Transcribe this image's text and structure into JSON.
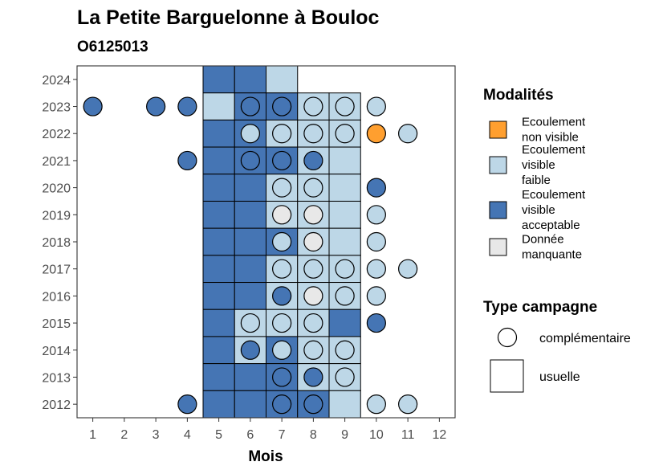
{
  "chart_data": {
    "type": "heatmap",
    "title": "La Petite Barguelonne à Bouloc",
    "subtitle": "O6125013",
    "xlabel": "Mois",
    "ylabel": "",
    "x_ticks": [
      "1",
      "2",
      "3",
      "4",
      "5",
      "6",
      "7",
      "8",
      "9",
      "10",
      "11",
      "12"
    ],
    "y_ticks": [
      "2012",
      "2013",
      "2014",
      "2015",
      "2016",
      "2017",
      "2018",
      "2019",
      "2020",
      "2021",
      "2022",
      "2023",
      "2024"
    ],
    "xlim": [
      0.5,
      12.5
    ],
    "ylim": [
      2011.5,
      2024.5
    ],
    "grid": false,
    "legend_position": "right",
    "modalites_legend": {
      "title": "Modalités",
      "items": [
        {
          "key": "nv",
          "lines": [
            "Ecoulement",
            "non visible"
          ],
          "color": "#FF9F2F"
        },
        {
          "key": "vf",
          "lines": [
            "Ecoulement",
            "visible",
            "faible"
          ],
          "color": "#BDD7E7"
        },
        {
          "key": "va",
          "lines": [
            "Ecoulement",
            "visible",
            "acceptable"
          ],
          "color": "#4575B4"
        },
        {
          "key": "dm",
          "lines": [
            "Donnée",
            "manquante"
          ],
          "color": "#E8E8E8"
        }
      ]
    },
    "campagne_legend": {
      "title": "Type campagne",
      "items": [
        {
          "key": "complementaire",
          "label": "complémentaire",
          "shape": "circle"
        },
        {
          "key": "usuelle",
          "label": "usuelle",
          "shape": "square"
        }
      ]
    },
    "tiles_usuelle": [
      {
        "year": 2024,
        "month": 5,
        "m": "va"
      },
      {
        "year": 2024,
        "month": 6,
        "m": "va"
      },
      {
        "year": 2024,
        "month": 7,
        "m": "vf"
      },
      {
        "year": 2023,
        "month": 5,
        "m": "vf"
      },
      {
        "year": 2023,
        "month": 6,
        "m": "va"
      },
      {
        "year": 2023,
        "month": 7,
        "m": "va"
      },
      {
        "year": 2023,
        "month": 8,
        "m": "vf"
      },
      {
        "year": 2023,
        "month": 9,
        "m": "vf"
      },
      {
        "year": 2022,
        "month": 5,
        "m": "va"
      },
      {
        "year": 2022,
        "month": 6,
        "m": "va"
      },
      {
        "year": 2022,
        "month": 7,
        "m": "vf"
      },
      {
        "year": 2022,
        "month": 8,
        "m": "vf"
      },
      {
        "year": 2022,
        "month": 9,
        "m": "vf"
      },
      {
        "year": 2021,
        "month": 5,
        "m": "va"
      },
      {
        "year": 2021,
        "month": 6,
        "m": "va"
      },
      {
        "year": 2021,
        "month": 7,
        "m": "va"
      },
      {
        "year": 2021,
        "month": 8,
        "m": "vf"
      },
      {
        "year": 2021,
        "month": 9,
        "m": "vf"
      },
      {
        "year": 2020,
        "month": 5,
        "m": "va"
      },
      {
        "year": 2020,
        "month": 6,
        "m": "va"
      },
      {
        "year": 2020,
        "month": 7,
        "m": "vf"
      },
      {
        "year": 2020,
        "month": 8,
        "m": "vf"
      },
      {
        "year": 2020,
        "month": 9,
        "m": "vf"
      },
      {
        "year": 2019,
        "month": 5,
        "m": "va"
      },
      {
        "year": 2019,
        "month": 6,
        "m": "va"
      },
      {
        "year": 2019,
        "month": 7,
        "m": "vf"
      },
      {
        "year": 2019,
        "month": 8,
        "m": "vf"
      },
      {
        "year": 2019,
        "month": 9,
        "m": "vf"
      },
      {
        "year": 2018,
        "month": 5,
        "m": "va"
      },
      {
        "year": 2018,
        "month": 6,
        "m": "va"
      },
      {
        "year": 2018,
        "month": 7,
        "m": "va"
      },
      {
        "year": 2018,
        "month": 8,
        "m": "vf"
      },
      {
        "year": 2018,
        "month": 9,
        "m": "vf"
      },
      {
        "year": 2017,
        "month": 5,
        "m": "va"
      },
      {
        "year": 2017,
        "month": 6,
        "m": "va"
      },
      {
        "year": 2017,
        "month": 7,
        "m": "vf"
      },
      {
        "year": 2017,
        "month": 8,
        "m": "vf"
      },
      {
        "year": 2017,
        "month": 9,
        "m": "vf"
      },
      {
        "year": 2016,
        "month": 5,
        "m": "va"
      },
      {
        "year": 2016,
        "month": 6,
        "m": "va"
      },
      {
        "year": 2016,
        "month": 7,
        "m": "vf"
      },
      {
        "year": 2016,
        "month": 8,
        "m": "vf"
      },
      {
        "year": 2016,
        "month": 9,
        "m": "vf"
      },
      {
        "year": 2015,
        "month": 5,
        "m": "va"
      },
      {
        "year": 2015,
        "month": 6,
        "m": "vf"
      },
      {
        "year": 2015,
        "month": 7,
        "m": "vf"
      },
      {
        "year": 2015,
        "month": 8,
        "m": "vf"
      },
      {
        "year": 2015,
        "month": 9,
        "m": "va"
      },
      {
        "year": 2014,
        "month": 5,
        "m": "va"
      },
      {
        "year": 2014,
        "month": 6,
        "m": "vf"
      },
      {
        "year": 2014,
        "month": 7,
        "m": "va"
      },
      {
        "year": 2014,
        "month": 8,
        "m": "vf"
      },
      {
        "year": 2014,
        "month": 9,
        "m": "vf"
      },
      {
        "year": 2013,
        "month": 5,
        "m": "va"
      },
      {
        "year": 2013,
        "month": 6,
        "m": "va"
      },
      {
        "year": 2013,
        "month": 7,
        "m": "va"
      },
      {
        "year": 2013,
        "month": 8,
        "m": "vf"
      },
      {
        "year": 2013,
        "month": 9,
        "m": "vf"
      },
      {
        "year": 2012,
        "month": 5,
        "m": "va"
      },
      {
        "year": 2012,
        "month": 6,
        "m": "va"
      },
      {
        "year": 2012,
        "month": 7,
        "m": "va"
      },
      {
        "year": 2012,
        "month": 8,
        "m": "va"
      },
      {
        "year": 2012,
        "month": 9,
        "m": "vf"
      }
    ],
    "points_complementaire": [
      {
        "year": 2023,
        "month": 1,
        "m": "va"
      },
      {
        "year": 2023,
        "month": 3,
        "m": "va"
      },
      {
        "year": 2023,
        "month": 4,
        "m": "va"
      },
      {
        "year": 2023,
        "month": 6,
        "m": "va"
      },
      {
        "year": 2023,
        "month": 7,
        "m": "va"
      },
      {
        "year": 2023,
        "month": 8,
        "m": "vf"
      },
      {
        "year": 2023,
        "month": 9,
        "m": "vf"
      },
      {
        "year": 2023,
        "month": 10,
        "m": "vf"
      },
      {
        "year": 2022,
        "month": 6,
        "m": "vf"
      },
      {
        "year": 2022,
        "month": 7,
        "m": "vf"
      },
      {
        "year": 2022,
        "month": 8,
        "m": "vf"
      },
      {
        "year": 2022,
        "month": 9,
        "m": "vf"
      },
      {
        "year": 2022,
        "month": 10,
        "m": "nv"
      },
      {
        "year": 2022,
        "month": 11,
        "m": "vf"
      },
      {
        "year": 2021,
        "month": 4,
        "m": "va"
      },
      {
        "year": 2021,
        "month": 6,
        "m": "va"
      },
      {
        "year": 2021,
        "month": 7,
        "m": "va"
      },
      {
        "year": 2021,
        "month": 8,
        "m": "va"
      },
      {
        "year": 2020,
        "month": 7,
        "m": "vf"
      },
      {
        "year": 2020,
        "month": 8,
        "m": "vf"
      },
      {
        "year": 2020,
        "month": 10,
        "m": "va"
      },
      {
        "year": 2019,
        "month": 7,
        "m": "dm"
      },
      {
        "year": 2019,
        "month": 8,
        "m": "dm"
      },
      {
        "year": 2019,
        "month": 10,
        "m": "vf"
      },
      {
        "year": 2018,
        "month": 7,
        "m": "vf"
      },
      {
        "year": 2018,
        "month": 8,
        "m": "dm"
      },
      {
        "year": 2018,
        "month": 10,
        "m": "vf"
      },
      {
        "year": 2017,
        "month": 7,
        "m": "vf"
      },
      {
        "year": 2017,
        "month": 8,
        "m": "vf"
      },
      {
        "year": 2017,
        "month": 9,
        "m": "vf"
      },
      {
        "year": 2017,
        "month": 10,
        "m": "vf"
      },
      {
        "year": 2017,
        "month": 11,
        "m": "vf"
      },
      {
        "year": 2016,
        "month": 7,
        "m": "va"
      },
      {
        "year": 2016,
        "month": 8,
        "m": "dm"
      },
      {
        "year": 2016,
        "month": 9,
        "m": "vf"
      },
      {
        "year": 2016,
        "month": 10,
        "m": "vf"
      },
      {
        "year": 2015,
        "month": 6,
        "m": "vf"
      },
      {
        "year": 2015,
        "month": 7,
        "m": "vf"
      },
      {
        "year": 2015,
        "month": 8,
        "m": "vf"
      },
      {
        "year": 2015,
        "month": 10,
        "m": "va"
      },
      {
        "year": 2014,
        "month": 6,
        "m": "va"
      },
      {
        "year": 2014,
        "month": 7,
        "m": "vf"
      },
      {
        "year": 2014,
        "month": 8,
        "m": "vf"
      },
      {
        "year": 2014,
        "month": 9,
        "m": "vf"
      },
      {
        "year": 2013,
        "month": 7,
        "m": "va"
      },
      {
        "year": 2013,
        "month": 8,
        "m": "va"
      },
      {
        "year": 2013,
        "month": 9,
        "m": "vf"
      },
      {
        "year": 2012,
        "month": 4,
        "m": "va"
      },
      {
        "year": 2012,
        "month": 7,
        "m": "va"
      },
      {
        "year": 2012,
        "month": 8,
        "m": "va"
      },
      {
        "year": 2012,
        "month": 10,
        "m": "vf"
      },
      {
        "year": 2012,
        "month": 11,
        "m": "vf"
      }
    ]
  }
}
